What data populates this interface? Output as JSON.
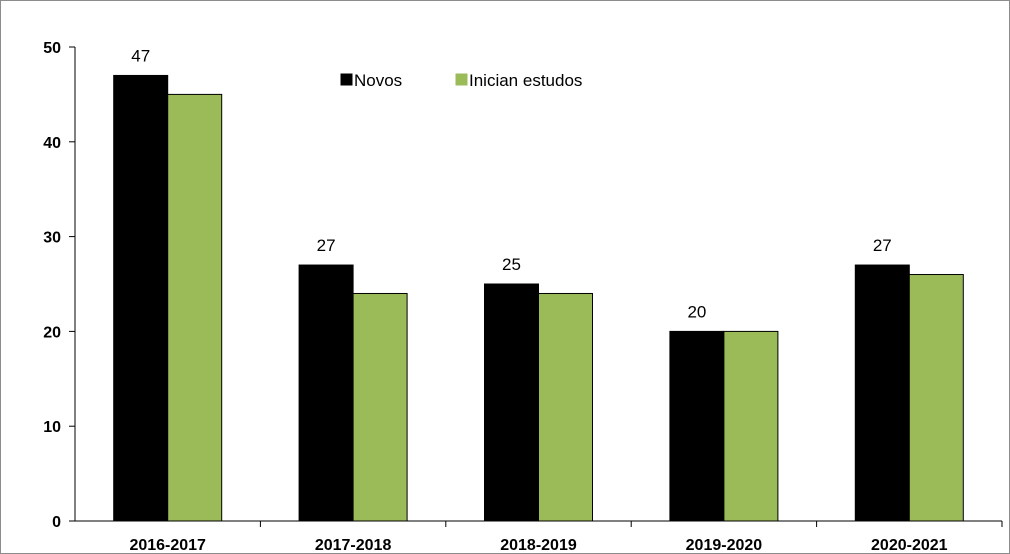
{
  "chart_data": {
    "type": "bar",
    "categories": [
      "2016-2017",
      "2017-2018",
      "2018-2019",
      "2019-2020",
      "2020-2021"
    ],
    "series": [
      {
        "name": "Novos",
        "values": [
          47,
          27,
          25,
          20,
          27
        ],
        "color": "#000000",
        "data_labels": [
          "47",
          "27",
          "25",
          "20",
          "27"
        ]
      },
      {
        "name": "Inician estudos",
        "values": [
          45,
          24,
          24,
          20,
          26
        ],
        "color": "#9bbb59"
      }
    ],
    "ylim": [
      0,
      50
    ],
    "yticks": [
      "0",
      "10",
      "20",
      "30",
      "40",
      "50"
    ],
    "grid": false,
    "legend_position": "top-center",
    "title": "",
    "xlabel": "",
    "ylabel": ""
  }
}
